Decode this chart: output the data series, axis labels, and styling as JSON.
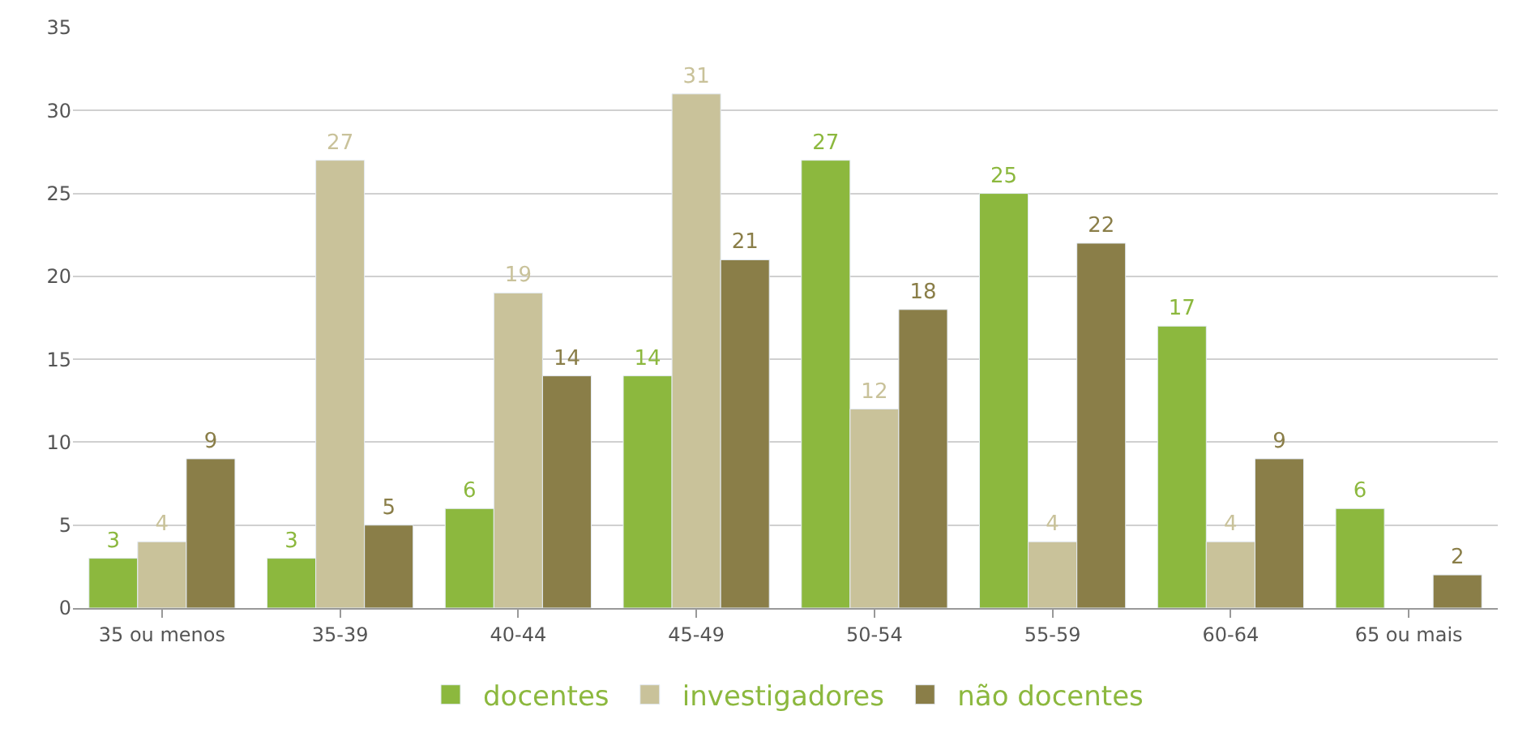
{
  "chart_data": {
    "type": "bar",
    "categories": [
      "35 ou menos",
      "35-39",
      "40-44",
      "45-49",
      "50-54",
      "55-59",
      "60-64",
      "65 ou mais"
    ],
    "series": [
      {
        "name": "docentes",
        "color": "#8cb83e",
        "values": [
          3,
          3,
          6,
          14,
          27,
          25,
          17,
          6
        ]
      },
      {
        "name": "investigadores",
        "color": "#c9c29a",
        "values": [
          4,
          27,
          19,
          31,
          12,
          4,
          4,
          null
        ]
      },
      {
        "name": "não docentes",
        "color": "#8a7e48",
        "values": [
          9,
          5,
          14,
          21,
          18,
          22,
          9,
          2
        ]
      }
    ],
    "ylim": [
      0,
      35
    ],
    "yticks": [
      0,
      5,
      10,
      15,
      20,
      25,
      30,
      35
    ],
    "grid": "y",
    "legend": "bottom",
    "data_labels": true
  }
}
